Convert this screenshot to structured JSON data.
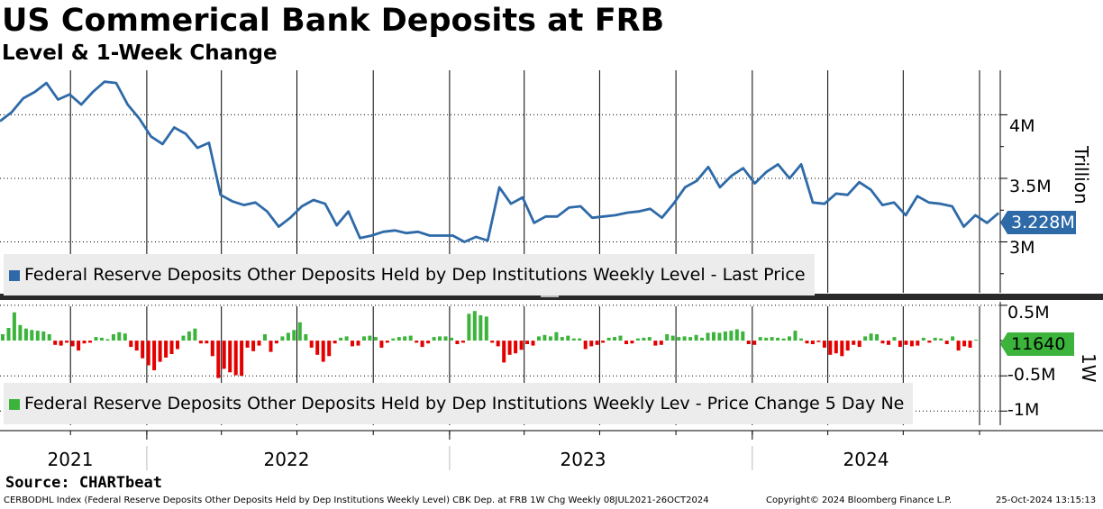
{
  "header": {
    "title": "US Commerical Bank Deposits at FRB",
    "subtitle": "Level & 1-Week Change"
  },
  "source": "Source: CHARTbeat",
  "footer": {
    "description": "CERBODHL Index (Federal Reserve Deposits Other Deposits Held by Dep Institutions Weekly Level) CBK Dep. at FRB 1W Chg  Weekly 08JUL2021-26OCT2024",
    "copyright": "Copyright© 2024 Bloomberg Finance L.P.",
    "timestamp": "25-Oct-2024 13:15:13"
  },
  "colors": {
    "level_line": "#2e6aa8",
    "up_bar": "#3cb43c",
    "down_bar": "#e30000",
    "last_level_flag": "#2e6aa8",
    "last_change_flag": "#3cb43c"
  },
  "chart_data": [
    {
      "type": "line",
      "legend": "Federal Reserve Deposits Other Deposits Held by Dep Institutions Weekly Level - Last Price",
      "legend_position": "bottom-left",
      "ylabel": "Trillion",
      "y_unit": "M",
      "y_ticks": [
        "4M",
        "3.5M",
        "3M"
      ],
      "ylim": [
        2.6,
        4.35
      ],
      "grid": true,
      "last_value_label": "3.228M",
      "x_ticks": [
        "2021",
        "2022",
        "2023",
        "2024"
      ],
      "x_range": [
        "2021-07-08",
        "2024-10-26"
      ],
      "x": [
        "2021-07-08",
        "2021-07-22",
        "2021-08-05",
        "2021-08-19",
        "2021-09-02",
        "2021-09-16",
        "2021-09-30",
        "2021-10-14",
        "2021-10-28",
        "2021-11-11",
        "2021-11-25",
        "2021-12-09",
        "2021-12-23",
        "2022-01-06",
        "2022-01-20",
        "2022-02-03",
        "2022-02-17",
        "2022-03-03",
        "2022-03-17",
        "2022-03-31",
        "2022-04-14",
        "2022-04-28",
        "2022-05-12",
        "2022-05-26",
        "2022-06-09",
        "2022-06-23",
        "2022-07-07",
        "2022-07-21",
        "2022-08-04",
        "2022-08-18",
        "2022-09-01",
        "2022-09-15",
        "2022-09-29",
        "2022-10-13",
        "2022-10-27",
        "2022-11-10",
        "2022-11-24",
        "2022-12-08",
        "2022-12-22",
        "2023-01-05",
        "2023-01-19",
        "2023-02-02",
        "2023-02-16",
        "2023-03-02",
        "2023-03-16",
        "2023-03-30",
        "2023-04-13",
        "2023-04-27",
        "2023-05-11",
        "2023-05-25",
        "2023-06-08",
        "2023-06-22",
        "2023-07-06",
        "2023-07-20",
        "2023-08-03",
        "2023-08-17",
        "2023-08-31",
        "2023-09-14",
        "2023-09-28",
        "2023-10-12",
        "2023-10-26",
        "2023-11-09",
        "2023-11-23",
        "2023-12-07",
        "2023-12-21",
        "2024-01-04",
        "2024-01-18",
        "2024-02-01",
        "2024-02-15",
        "2024-02-29",
        "2024-03-14",
        "2024-03-28",
        "2024-04-11",
        "2024-04-25",
        "2024-05-09",
        "2024-05-23",
        "2024-06-06",
        "2024-06-20",
        "2024-07-04",
        "2024-07-18",
        "2024-08-01",
        "2024-08-15",
        "2024-08-29",
        "2024-09-12",
        "2024-09-26",
        "2024-10-10",
        "2024-10-24"
      ],
      "values": [
        3.95,
        4.02,
        4.13,
        4.18,
        4.25,
        4.12,
        4.16,
        4.08,
        4.18,
        4.26,
        4.25,
        4.08,
        3.97,
        3.83,
        3.77,
        3.9,
        3.85,
        3.74,
        3.78,
        3.37,
        3.32,
        3.29,
        3.31,
        3.24,
        3.12,
        3.19,
        3.28,
        3.33,
        3.3,
        3.13,
        3.24,
        3.03,
        3.05,
        3.08,
        3.09,
        3.07,
        3.08,
        3.05,
        3.05,
        3.05,
        3.0,
        3.04,
        3.01,
        3.43,
        3.3,
        3.35,
        3.15,
        3.2,
        3.2,
        3.27,
        3.28,
        3.19,
        3.2,
        3.21,
        3.23,
        3.24,
        3.26,
        3.19,
        3.3,
        3.43,
        3.48,
        3.59,
        3.43,
        3.52,
        3.58,
        3.46,
        3.55,
        3.61,
        3.5,
        3.61,
        3.31,
        3.3,
        3.38,
        3.37,
        3.47,
        3.41,
        3.29,
        3.31,
        3.21,
        3.36,
        3.31,
        3.3,
        3.28,
        3.12,
        3.21,
        3.15,
        3.228
      ]
    },
    {
      "type": "bar",
      "legend": "Federal Reserve Deposits Other Deposits Held by Dep Institutions Weekly Lev - Price Change 5 Day Ne",
      "legend_position": "bottom-left",
      "ylabel": "1W",
      "y_unit": "M",
      "y_ticks": [
        "0.5M",
        "-0.5M",
        "-1M"
      ],
      "ylim": [
        -1.2,
        0.55
      ],
      "grid": true,
      "last_value_label": "11640",
      "x_ticks": [
        "2021",
        "2022",
        "2023",
        "2024"
      ],
      "x_range": [
        "2021-07-08",
        "2024-10-26"
      ],
      "values": [
        0.09,
        0.18,
        0.4,
        0.22,
        0.17,
        0.15,
        0.14,
        0.13,
        0.09,
        -0.06,
        -0.07,
        -0.03,
        -0.08,
        -0.14,
        -0.04,
        -0.03,
        0.05,
        0.04,
        0.02,
        0.09,
        0.12,
        0.1,
        -0.09,
        -0.14,
        -0.25,
        -0.35,
        -0.42,
        -0.3,
        -0.24,
        -0.19,
        -0.12,
        0.07,
        0.13,
        0.17,
        -0.04,
        -0.04,
        -0.22,
        -0.53,
        -0.4,
        -0.45,
        -0.49,
        -0.5,
        -0.1,
        -0.15,
        -0.07,
        0.09,
        -0.16,
        -0.04,
        0.06,
        0.11,
        0.15,
        0.26,
        0.09,
        -0.1,
        -0.2,
        -0.3,
        -0.22,
        -0.04,
        0.04,
        0.06,
        -0.08,
        -0.07,
        0.06,
        0.07,
        0.05,
        -0.1,
        -0.03,
        0.03,
        0.05,
        0.06,
        0.07,
        -0.03,
        -0.09,
        -0.04,
        0.05,
        0.06,
        0.06,
        0.04,
        -0.05,
        -0.03,
        0.38,
        0.42,
        0.36,
        0.34,
        -0.03,
        -0.08,
        -0.31,
        -0.2,
        -0.18,
        -0.13,
        -0.05,
        -0.07,
        0.06,
        0.08,
        0.06,
        0.12,
        0.05,
        0.07,
        0.03,
        0.03,
        -0.12,
        -0.08,
        -0.06,
        -0.03,
        0.04,
        0.05,
        0.07,
        -0.05,
        -0.04,
        0.03,
        0.04,
        0.05,
        -0.07,
        -0.06,
        0.09,
        0.07,
        0.05,
        0.06,
        0.05,
        0.08,
        0.04,
        0.11,
        0.12,
        0.11,
        0.13,
        0.14,
        0.16,
        0.13,
        -0.05,
        -0.06,
        0.05,
        0.04,
        0.05,
        0.04,
        0.03,
        0.06,
        0.14,
        0.03,
        -0.04,
        -0.05,
        -0.02,
        -0.1,
        -0.2,
        -0.18,
        -0.22,
        -0.14,
        -0.06,
        -0.09,
        0.06,
        0.1,
        0.09,
        -0.04,
        -0.06,
        0.05,
        -0.09,
        -0.06,
        -0.08,
        -0.07,
        0.04,
        -0.03,
        0.04,
        0.03,
        -0.05,
        0.06,
        -0.14,
        -0.08,
        -0.1,
        0.0116
      ]
    }
  ]
}
